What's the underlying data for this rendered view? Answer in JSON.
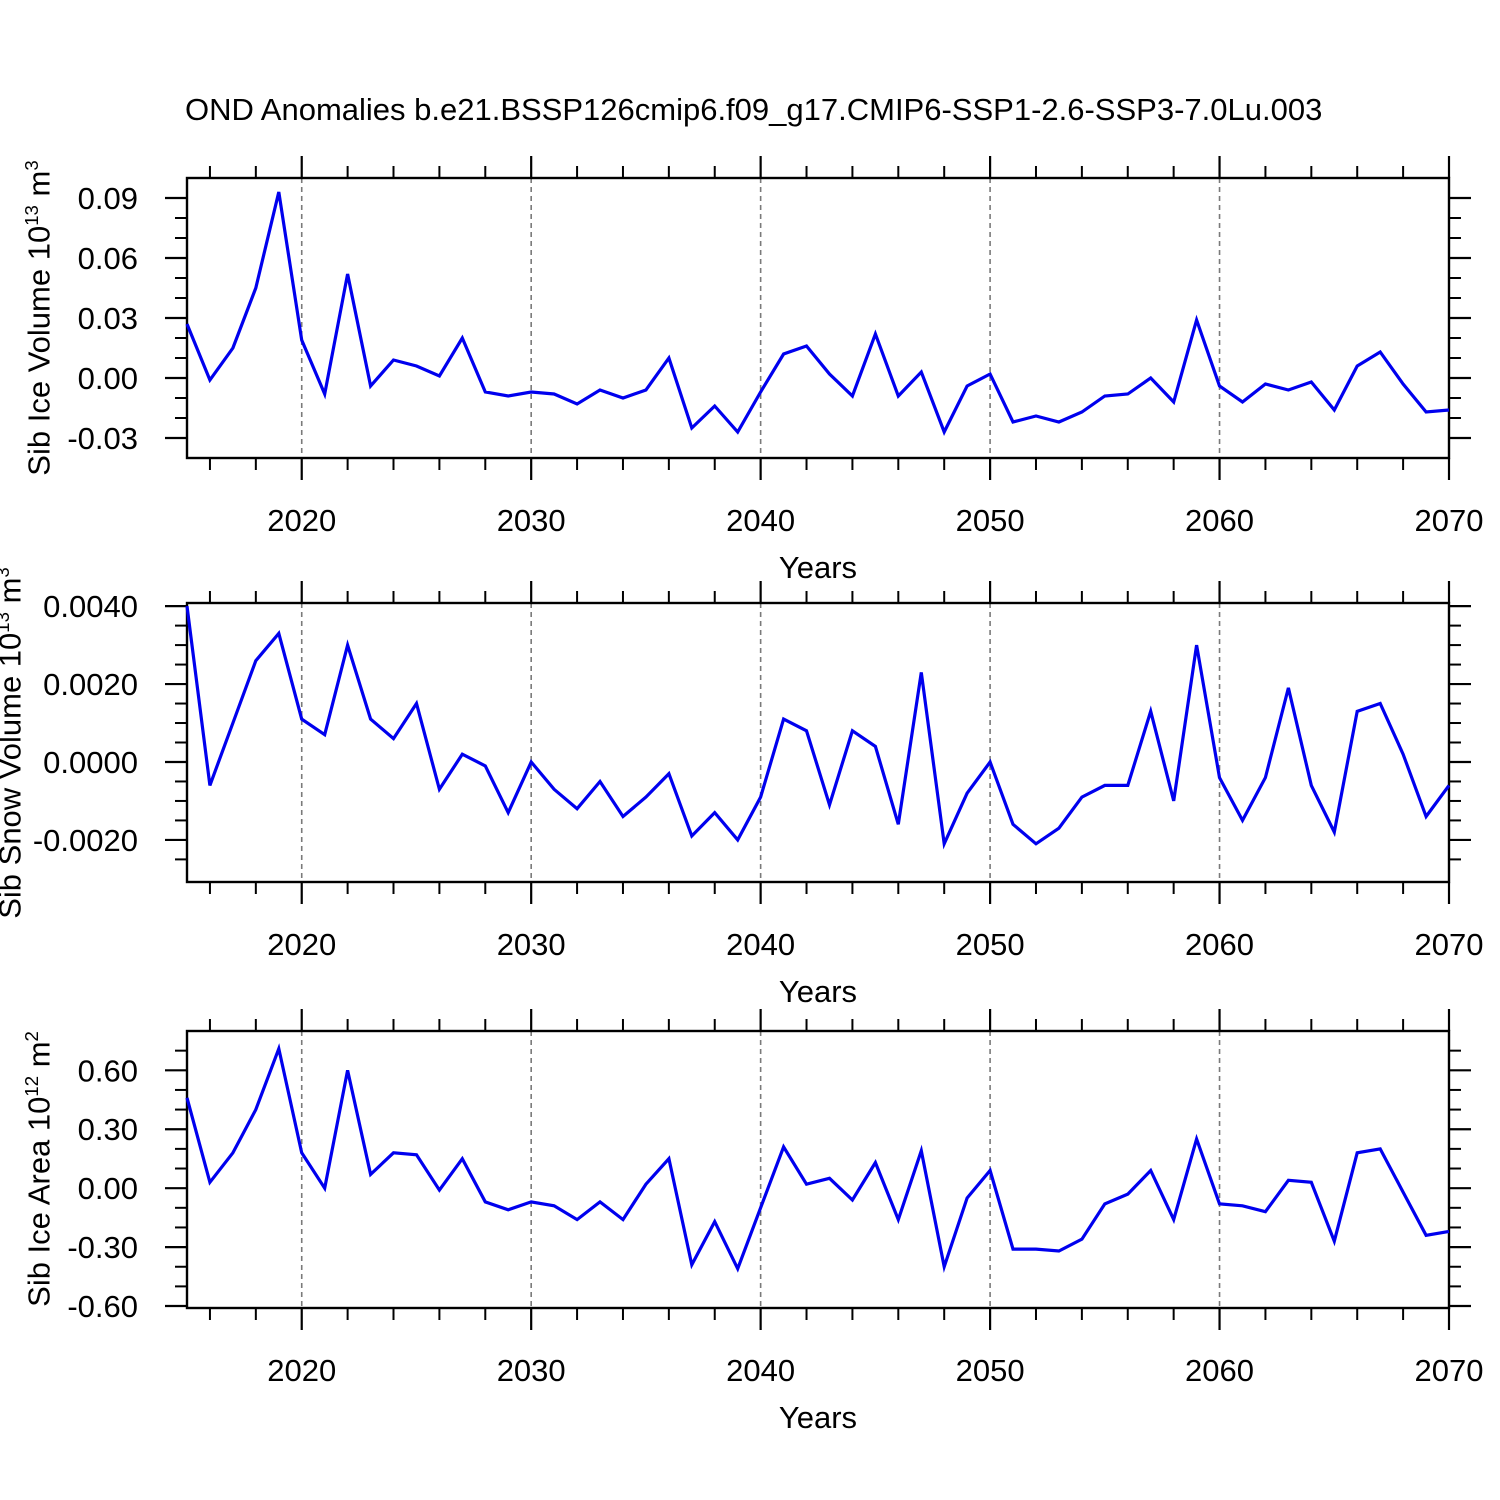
{
  "title": "OND Anomalies b.e21.BSSP126cmip6.f09_g17.CMIP6-SSP1-2.6-SSP3-7.0Lu.003",
  "colors": {
    "line": "#0000ee",
    "grid": "#7a7a7a",
    "frame": "#000000",
    "text": "#000000"
  },
  "x_axis": {
    "label": "Years",
    "range": [
      2015,
      2070
    ],
    "major_ticks": [
      2020,
      2030,
      2040,
      2050,
      2060,
      2070
    ],
    "major_labels": [
      "2020",
      "2030",
      "2040",
      "2050",
      "2060",
      "2070"
    ],
    "minor_step": 2,
    "dashed_gridlines": [
      2020,
      2030,
      2040,
      2050,
      2060
    ],
    "years": [
      2015,
      2016,
      2017,
      2018,
      2019,
      2020,
      2021,
      2022,
      2023,
      2024,
      2025,
      2026,
      2027,
      2028,
      2029,
      2030,
      2031,
      2032,
      2033,
      2034,
      2035,
      2036,
      2037,
      2038,
      2039,
      2040,
      2041,
      2042,
      2043,
      2044,
      2045,
      2046,
      2047,
      2048,
      2049,
      2050,
      2051,
      2052,
      2053,
      2054,
      2055,
      2056,
      2057,
      2058,
      2059,
      2060,
      2061,
      2062,
      2063,
      2064,
      2065,
      2066,
      2067,
      2068,
      2069,
      2070
    ]
  },
  "chart_data": [
    {
      "type": "line",
      "panel": "top",
      "ylabel": {
        "base": "Sib Ice Volume 10",
        "exp": "13",
        "unit": " m",
        "unit_exp": "3"
      },
      "xlabel": "Years",
      "ylim": [
        -0.04,
        0.1
      ],
      "ytick_values": [
        -0.03,
        0.0,
        0.03,
        0.06,
        0.09
      ],
      "ytick_labels": [
        "-0.03",
        "0.00",
        "0.03",
        "0.06",
        "0.09"
      ],
      "y_minor_step": 0.01,
      "values": [
        0.027,
        -0.001,
        0.015,
        0.045,
        0.093,
        0.019,
        -0.008,
        0.052,
        -0.004,
        0.009,
        0.006,
        0.001,
        0.02,
        -0.007,
        -0.009,
        -0.007,
        -0.008,
        -0.013,
        -0.006,
        -0.01,
        -0.006,
        0.01,
        -0.025,
        -0.014,
        -0.027,
        -0.007,
        0.012,
        0.016,
        0.002,
        -0.009,
        0.022,
        -0.009,
        0.003,
        -0.027,
        -0.004,
        0.002,
        -0.022,
        -0.019,
        -0.022,
        -0.017,
        -0.009,
        -0.008,
        0.0,
        -0.012,
        0.029,
        -0.004,
        -0.012,
        -0.003,
        -0.006,
        -0.002,
        -0.016,
        0.006,
        0.013,
        -0.003,
        -0.017,
        -0.016
      ]
    },
    {
      "type": "line",
      "panel": "middle",
      "ylabel": {
        "base": "Sib Snow Volume 10",
        "exp": "13",
        "unit": " m",
        "unit_exp": "3"
      },
      "xlabel": "Years",
      "ylim": [
        -0.00308,
        0.00408
      ],
      "ytick_values": [
        -0.002,
        0.0,
        0.002,
        0.004
      ],
      "ytick_labels": [
        "-0.0020",
        "0.0000",
        "0.0020",
        "0.0040"
      ],
      "y_minor_step": 0.0005,
      "values": [
        0.004,
        -0.0006,
        0.001,
        0.0026,
        0.0033,
        0.0011,
        0.0007,
        0.003,
        0.0011,
        0.0006,
        0.0015,
        -0.0007,
        0.0002,
        -0.0001,
        -0.0013,
        0.0,
        -0.0007,
        -0.0012,
        -0.0005,
        -0.0014,
        -0.0009,
        -0.0003,
        -0.0019,
        -0.0013,
        -0.002,
        -0.0009,
        0.0011,
        0.0008,
        -0.0011,
        0.0008,
        0.0004,
        -0.0016,
        0.0023,
        -0.0021,
        -0.0008,
        0.0,
        -0.0016,
        -0.0021,
        -0.0017,
        -0.0009,
        -0.0006,
        -0.0006,
        0.0013,
        -0.001,
        0.003,
        -0.0004,
        -0.0015,
        -0.0004,
        0.0019,
        -0.0006,
        -0.0018,
        0.0013,
        0.0015,
        0.0002,
        -0.0014,
        -0.0006
      ]
    },
    {
      "type": "line",
      "panel": "bottom",
      "ylabel": {
        "base": "Sib Ice Area 10",
        "exp": "12",
        "unit": " m",
        "unit_exp": "2"
      },
      "xlabel": "Years",
      "ylim": [
        -0.61,
        0.8
      ],
      "ytick_values": [
        -0.6,
        -0.3,
        0.0,
        0.3,
        0.6
      ],
      "ytick_labels": [
        "-0.60",
        "-0.30",
        "0.00",
        "0.30",
        "0.60"
      ],
      "y_minor_step": 0.1,
      "values": [
        0.46,
        0.03,
        0.18,
        0.4,
        0.71,
        0.18,
        0.0,
        0.6,
        0.07,
        0.18,
        0.17,
        -0.01,
        0.15,
        -0.07,
        -0.11,
        -0.07,
        -0.09,
        -0.16,
        -0.07,
        -0.16,
        0.02,
        0.15,
        -0.39,
        -0.17,
        -0.41,
        -0.1,
        0.21,
        0.02,
        0.05,
        -0.06,
        0.13,
        -0.16,
        0.19,
        -0.4,
        -0.05,
        0.09,
        -0.31,
        -0.31,
        -0.32,
        -0.26,
        -0.08,
        -0.03,
        0.09,
        -0.16,
        0.25,
        -0.08,
        -0.09,
        -0.12,
        0.04,
        0.03,
        -0.27,
        0.18,
        0.2,
        -0.02,
        -0.24,
        -0.22
      ]
    }
  ]
}
